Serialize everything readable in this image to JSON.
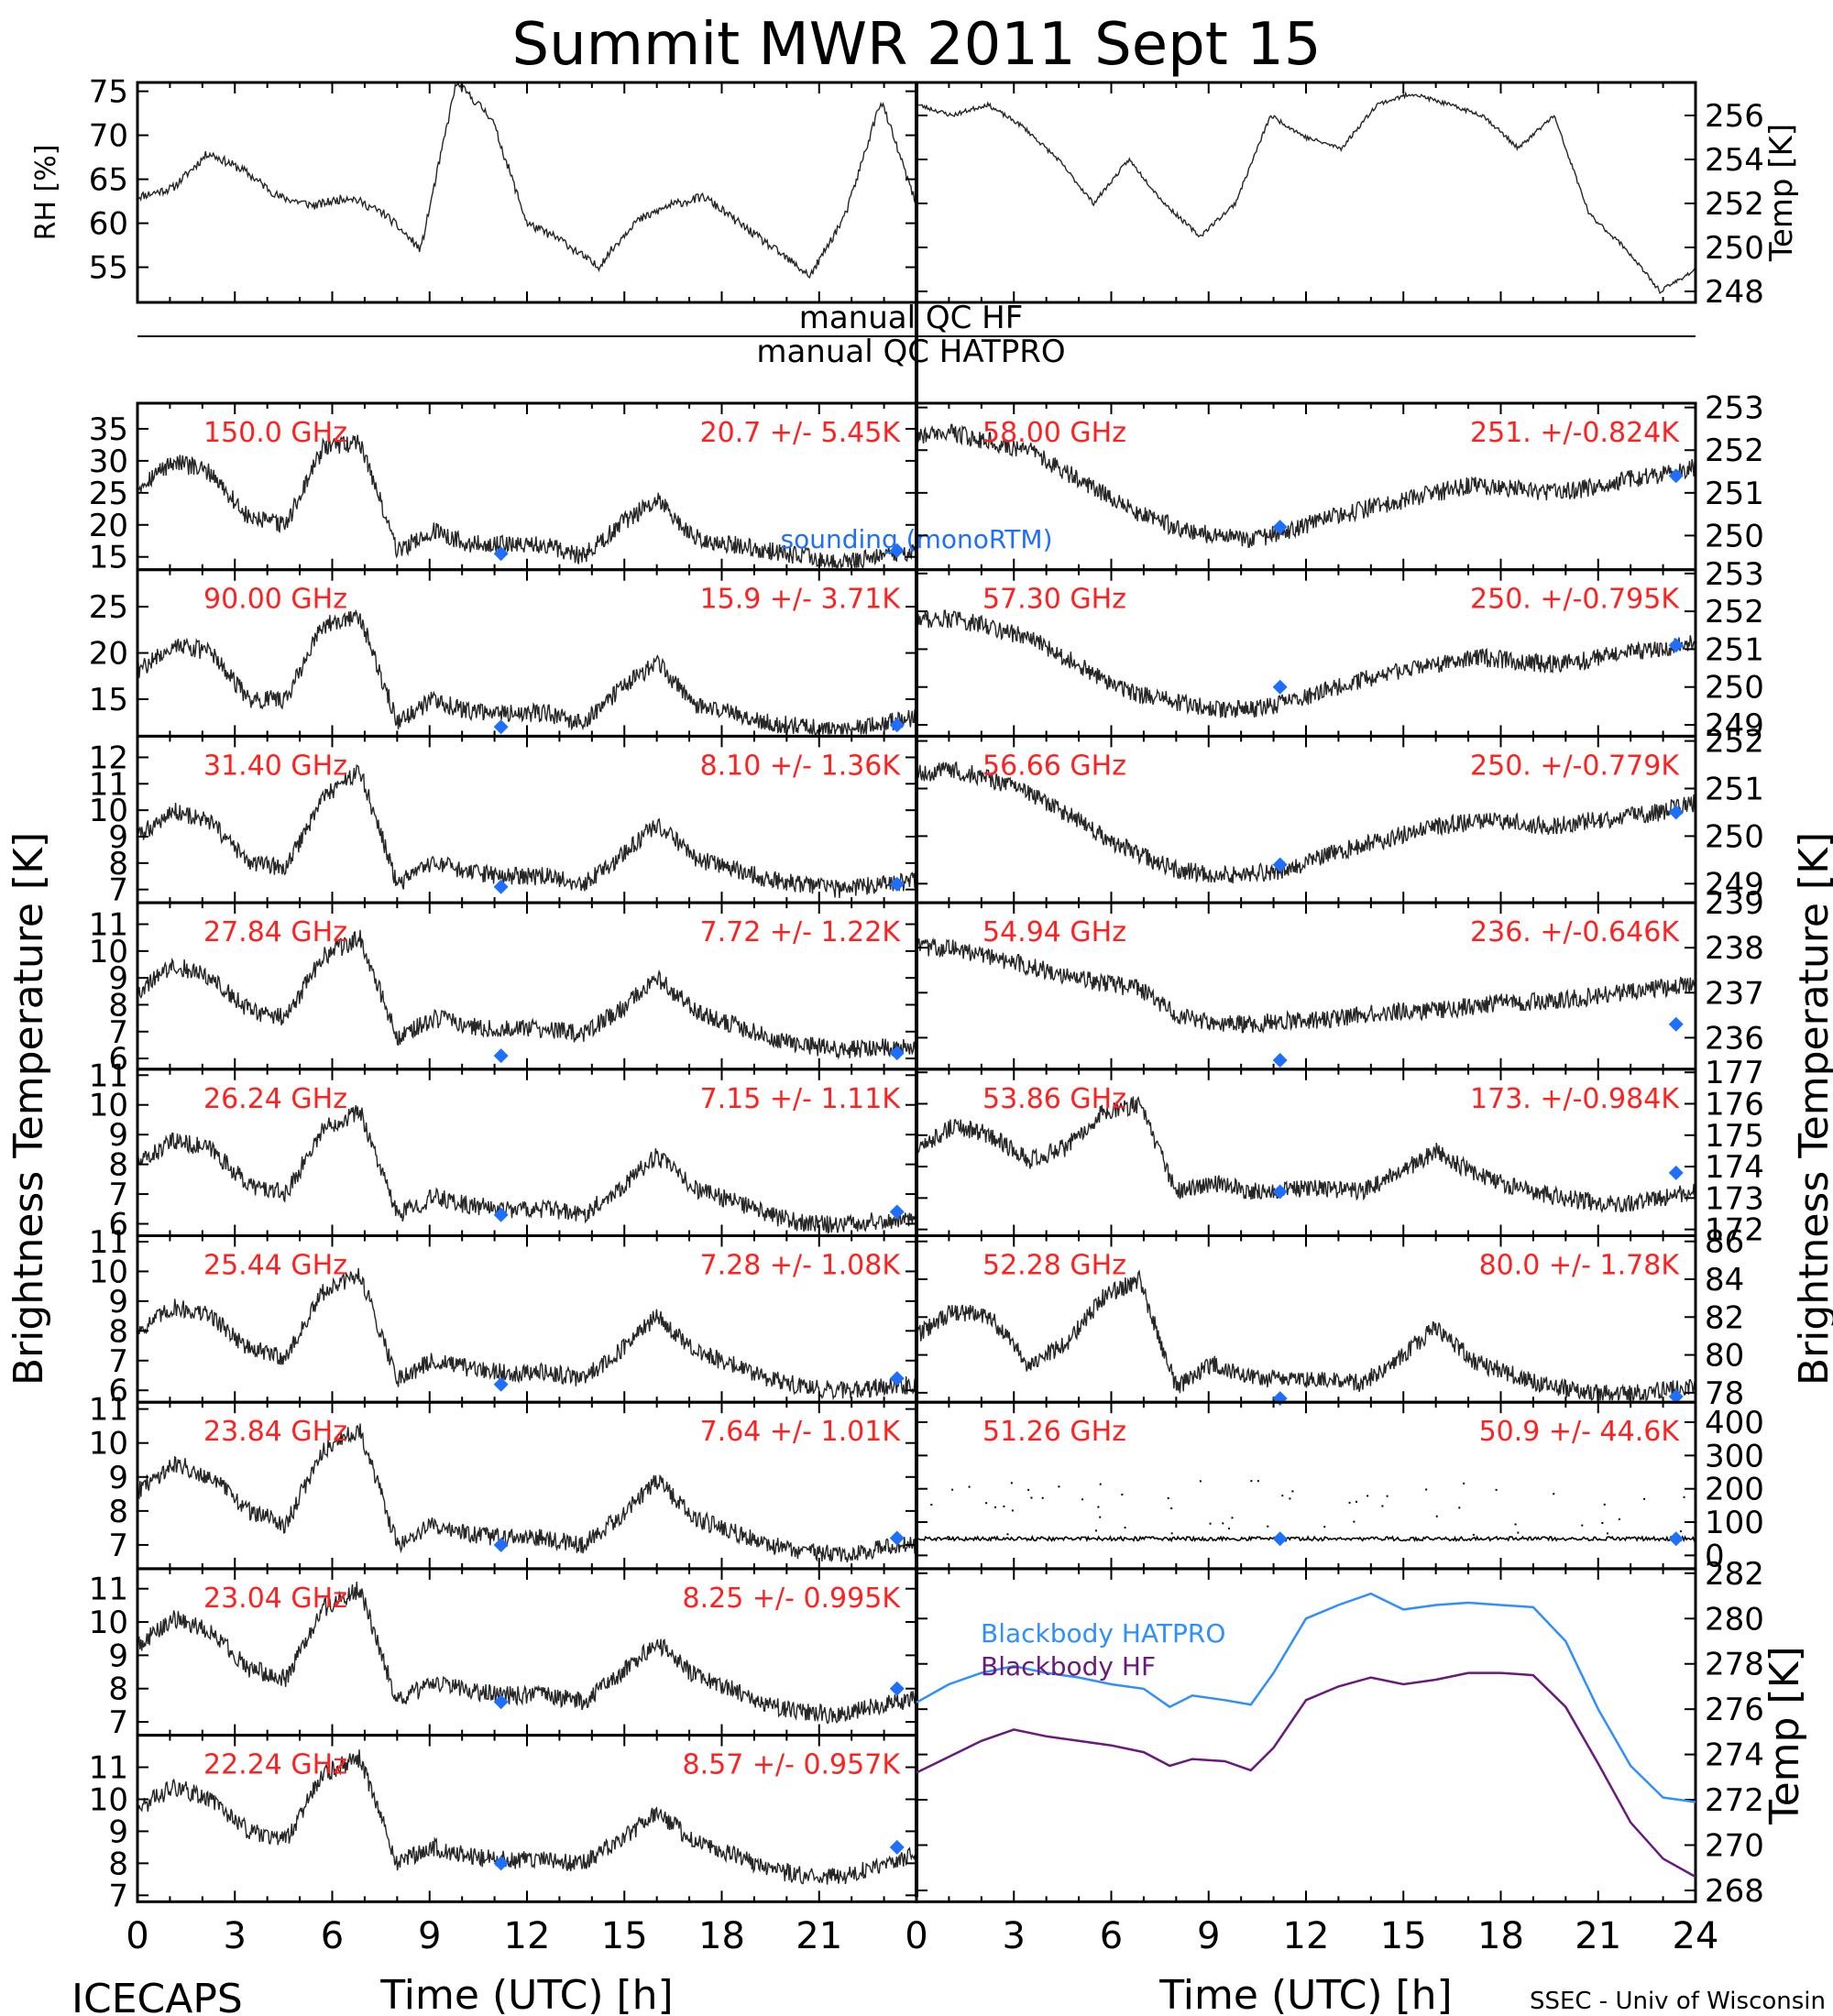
{
  "title": "Summit MWR 2011 Sept 15",
  "footer_left": "ICECAPS",
  "footer_right": "SSEC - Univ of Wisconsin",
  "xlabel": "Time (UTC) [h]",
  "ylabel_left": "Brightness Temperature [K]",
  "ylabel_right": "Brightness Temperature [K]",
  "qc_lines": [
    "manual QC HF",
    "manual QC HATPRO"
  ],
  "sounding_label": "sounding (monoRTM)",
  "colors": {
    "stat_text": "#ff2020",
    "sounding": "#1f6fff",
    "hatpro_line": "#2f8fff",
    "hf_line": "#6a1a7a",
    "trace": "#000000"
  },
  "chart_data": [
    {
      "type": "line",
      "name": "rh",
      "ylabel": "RH [%]",
      "ylim": [
        51,
        76
      ],
      "yticks": [
        55,
        60,
        65,
        70,
        75
      ],
      "x": [
        0,
        24
      ],
      "xticks": [
        0,
        3,
        6,
        9,
        12,
        15,
        18,
        21
      ],
      "trend": [
        63,
        64,
        68,
        66,
        63,
        62,
        63,
        61,
        57,
        76,
        72,
        60,
        58,
        55,
        60,
        62,
        63,
        60,
        57,
        54,
        61,
        74,
        62
      ]
    },
    {
      "type": "line",
      "name": "temp",
      "ylabel": "Temp [K]",
      "ylim": [
        247.5,
        257.5
      ],
      "yticks": [
        248,
        250,
        252,
        254,
        256
      ],
      "x": [
        0,
        24
      ],
      "xticks": [
        0,
        3,
        6,
        9,
        12,
        15,
        18,
        21,
        24
      ],
      "trend": [
        256.5,
        256,
        256.5,
        255.5,
        254,
        252,
        254,
        252,
        250.5,
        252,
        256,
        255,
        254.5,
        256.5,
        257,
        256.5,
        256,
        254.5,
        256,
        251.5,
        250,
        248,
        249
      ]
    },
    {
      "type": "line",
      "name": "150.0 GHz",
      "label": "150.0 GHz",
      "stat": "20.7 +/- 5.45K",
      "ylim": [
        13,
        39
      ],
      "yticks": [
        15,
        20,
        25,
        30,
        35
      ],
      "trend": [
        26,
        30,
        28,
        21,
        20,
        32,
        33,
        16,
        19,
        17,
        17,
        17,
        15,
        20,
        24,
        18,
        17,
        16,
        15,
        14,
        15,
        16
      ],
      "sounding": [
        [
          11.2,
          15.5
        ],
        [
          23.4,
          16
        ]
      ]
    },
    {
      "type": "line",
      "name": "90.00 GHz",
      "label": "90.00 GHz",
      "stat": "15.9 +/- 3.71K",
      "ylim": [
        11,
        29
      ],
      "yticks": [
        15,
        20,
        25
      ],
      "trend": [
        18,
        21,
        20,
        15,
        15,
        23,
        24,
        12.5,
        15,
        13.5,
        13.5,
        13.5,
        12.5,
        16,
        19,
        14.5,
        13.5,
        12.5,
        12,
        11.5,
        12.5,
        13
      ],
      "sounding": [
        [
          11.2,
          12
        ],
        [
          23.4,
          12.2
        ]
      ]
    },
    {
      "type": "line",
      "name": "31.40 GHz",
      "label": "31.40 GHz",
      "stat": "8.10 +/- 1.36K",
      "ylim": [
        6.5,
        12.8
      ],
      "yticks": [
        7,
        8,
        9,
        10,
        11,
        12
      ],
      "trend": [
        9,
        10,
        9.5,
        8,
        7.8,
        10.5,
        11.5,
        7.2,
        8,
        7.6,
        7.5,
        7.5,
        7.2,
        8.2,
        9.5,
        8.2,
        7.8,
        7.4,
        7.2,
        7,
        7.2,
        7.3
      ],
      "sounding": [
        [
          11.2,
          7.1
        ],
        [
          23.4,
          7.2
        ]
      ]
    },
    {
      "type": "line",
      "name": "27.84 GHz",
      "label": "27.84 GHz",
      "stat": "7.72 +/- 1.22K",
      "ylim": [
        5.6,
        11.8
      ],
      "yticks": [
        6,
        7,
        8,
        9,
        10,
        11
      ],
      "trend": [
        8.5,
        9.5,
        9,
        7.8,
        7.5,
        9.8,
        10.5,
        6.8,
        7.5,
        7.2,
        7.1,
        7.1,
        6.9,
        7.8,
        9,
        7.8,
        7.3,
        6.8,
        6.5,
        6.3,
        6.4,
        6.5
      ],
      "sounding": [
        [
          11.2,
          6.1
        ],
        [
          23.4,
          6.2
        ]
      ]
    },
    {
      "type": "line",
      "name": "26.24 GHz",
      "label": "26.24 GHz",
      "stat": "7.15 +/- 1.11K",
      "ylim": [
        5.6,
        11.2
      ],
      "yticks": [
        6,
        7,
        8,
        9,
        10,
        11
      ],
      "trend": [
        8,
        8.8,
        8.5,
        7.3,
        7,
        9.2,
        9.8,
        6.3,
        6.9,
        6.6,
        6.5,
        6.5,
        6.3,
        7.2,
        8.3,
        7.2,
        6.8,
        6.3,
        6,
        6,
        6.1,
        6.2
      ],
      "sounding": [
        [
          11.2,
          6.3
        ],
        [
          23.4,
          6.4
        ]
      ]
    },
    {
      "type": "line",
      "name": "25.44 GHz",
      "label": "25.44 GHz",
      "stat": "7.28 +/- 1.08K",
      "ylim": [
        5.6,
        11.2
      ],
      "yticks": [
        6,
        7,
        8,
        9,
        10,
        11
      ],
      "trend": [
        8,
        8.8,
        8.5,
        7.4,
        7.1,
        9.3,
        9.9,
        6.4,
        7,
        6.7,
        6.6,
        6.6,
        6.4,
        7.3,
        8.5,
        7.3,
        6.9,
        6.4,
        6.1,
        6,
        6.1,
        6.2
      ],
      "sounding": [
        [
          11.2,
          6.2
        ],
        [
          23.4,
          6.4
        ]
      ]
    },
    {
      "type": "line",
      "name": "23.84 GHz",
      "label": "23.84 GHz",
      "stat": "7.64 +/- 1.01K",
      "ylim": [
        6.3,
        11.2
      ],
      "yticks": [
        7,
        8,
        9,
        10,
        11
      ],
      "trend": [
        8.6,
        9.4,
        9,
        8,
        7.6,
        9.8,
        10.4,
        7,
        7.6,
        7.3,
        7.2,
        7.2,
        7,
        7.8,
        8.9,
        7.8,
        7.4,
        7,
        6.8,
        6.7,
        6.9,
        7
      ],
      "sounding": [
        [
          11.2,
          7
        ],
        [
          23.4,
          7.2
        ]
      ]
    },
    {
      "type": "line",
      "name": "23.04 GHz",
      "label": "23.04 GHz",
      "stat": "8.25 +/- 0.995K",
      "ylim": [
        6.6,
        11.6
      ],
      "yticks": [
        7,
        8,
        9,
        10,
        11
      ],
      "trend": [
        9.3,
        10.1,
        9.7,
        8.6,
        8.3,
        10.4,
        11,
        7.6,
        8.2,
        7.9,
        7.8,
        7.8,
        7.6,
        8.4,
        9.4,
        8.4,
        8,
        7.5,
        7.3,
        7.2,
        7.5,
        7.7
      ],
      "sounding": [
        [
          11.2,
          7.6
        ],
        [
          23.4,
          8
        ]
      ]
    },
    {
      "type": "line",
      "name": "22.24 GHz",
      "label": "22.24 GHz",
      "stat": "8.57 +/- 0.957K",
      "ylim": [
        6.8,
        12
      ],
      "yticks": [
        7,
        8,
        9,
        10,
        11
      ],
      "trend": [
        9.7,
        10.4,
        10,
        9,
        8.7,
        10.8,
        11.3,
        8,
        8.5,
        8.2,
        8.1,
        8.1,
        8,
        8.7,
        9.6,
        8.7,
        8.3,
        7.8,
        7.6,
        7.6,
        7.9,
        8.3
      ],
      "sounding": [
        [
          11.2,
          8
        ],
        [
          23.4,
          8.5
        ]
      ]
    },
    {
      "type": "line",
      "name": "58.00 GHz",
      "label": "58.00 GHz",
      "stat": "251. +/-0.824K",
      "ylim": [
        249.2,
        253.1
      ],
      "yticks": [
        250,
        251,
        252,
        253
      ],
      "trend": [
        252.3,
        252.4,
        252.2,
        252,
        251.5,
        251,
        250.5,
        250.2,
        250,
        249.9,
        250.1,
        250.4,
        250.6,
        250.8,
        251,
        251.2,
        251.1,
        251,
        251.1,
        251.3,
        251.4,
        251.6
      ],
      "sounding": [
        [
          11.2,
          250.2
        ],
        [
          23.4,
          251.4
        ]
      ]
    },
    {
      "type": "line",
      "name": "57.30 GHz",
      "label": "57.30 GHz",
      "stat": "250. +/-0.795K",
      "ylim": [
        248.7,
        253.1
      ],
      "yticks": [
        249,
        250,
        251,
        252,
        253
      ],
      "trend": [
        251.8,
        251.8,
        251.6,
        251.3,
        250.8,
        250.2,
        249.8,
        249.6,
        249.4,
        249.4,
        249.6,
        249.9,
        250.2,
        250.4,
        250.6,
        250.8,
        250.7,
        250.6,
        250.7,
        250.9,
        251,
        251.2
      ],
      "sounding": [
        [
          11.2,
          250
        ],
        [
          23.4,
          251.1
        ]
      ]
    },
    {
      "type": "line",
      "name": "56.66 GHz",
      "label": "56.66 GHz",
      "stat": "250. +/-0.779K",
      "ylim": [
        248.6,
        252.1
      ],
      "yticks": [
        249,
        250,
        251,
        252
      ],
      "trend": [
        251.3,
        251.4,
        251.2,
        250.9,
        250.5,
        250,
        249.6,
        249.3,
        249.2,
        249.2,
        249.3,
        249.6,
        249.8,
        250,
        250.2,
        250.3,
        250.3,
        250.2,
        250.3,
        250.4,
        250.5,
        250.7
      ],
      "sounding": [
        [
          11.2,
          249.4
        ],
        [
          23.4,
          250.5
        ]
      ]
    },
    {
      "type": "line",
      "name": "54.94 GHz",
      "label": "54.94 GHz",
      "stat": "236. +/-0.646K",
      "ylim": [
        235.3,
        239
      ],
      "yticks": [
        236,
        237,
        238,
        239
      ],
      "trend": [
        238,
        238,
        237.8,
        237.6,
        237.4,
        237.2,
        237.1,
        236.5,
        236.3,
        236.3,
        236.4,
        236.4,
        236.5,
        236.6,
        236.6,
        236.7,
        236.8,
        236.8,
        236.9,
        237,
        237.1,
        237.2
      ],
      "sounding": [
        [
          11.2,
          235.5
        ],
        [
          23.4,
          236.3
        ]
      ]
    },
    {
      "type": "line",
      "name": "53.86 GHz",
      "label": "53.86 GHz",
      "stat": "173. +/-0.984K",
      "ylim": [
        171.8,
        177.1
      ],
      "yticks": [
        172,
        173,
        174,
        175,
        176,
        177
      ],
      "trend": [
        174.5,
        175.3,
        175,
        174.2,
        174.6,
        175.7,
        176,
        173.2,
        173.5,
        173.2,
        173.3,
        173.3,
        173.2,
        173.8,
        174.5,
        173.8,
        173.4,
        173.1,
        172.9,
        172.8,
        173,
        173.2
      ],
      "sounding": [
        [
          11.2,
          173.2
        ],
        [
          23.4,
          173.8
        ]
      ]
    },
    {
      "type": "line",
      "name": "52.28 GHz",
      "label": "52.28 GHz",
      "stat": "80.0 +/- 1.78K",
      "ylim": [
        77.5,
        86.3
      ],
      "yticks": [
        78,
        80,
        82,
        84,
        86
      ],
      "trend": [
        81,
        82.3,
        82,
        79.5,
        80.5,
        83,
        84,
        78.3,
        79.5,
        78.8,
        78.7,
        78.7,
        78.5,
        79.8,
        81.5,
        79.7,
        79,
        78.4,
        78,
        77.9,
        78.1,
        78.4
      ],
      "sounding": [
        [
          11.2,
          77.7
        ],
        [
          23.4,
          77.8
        ]
      ]
    },
    {
      "type": "line",
      "name": "51.26 GHz",
      "label": "51.26 GHz",
      "stat": "50.9 +/- 44.6K",
      "ylim": [
        -40,
        460
      ],
      "yticks": [
        0,
        100,
        200,
        300,
        400
      ],
      "trend": [
        50,
        50,
        50,
        50,
        50,
        50,
        50,
        50,
        50,
        50,
        50,
        50,
        50,
        50,
        50,
        50,
        50,
        50,
        50,
        50,
        50,
        50
      ],
      "sounding": [
        [
          11.2,
          50
        ],
        [
          23.4,
          50
        ]
      ]
    },
    {
      "type": "line",
      "name": "blackbody",
      "ylabel": "Temp [K]",
      "ylim": [
        267.5,
        282.2
      ],
      "yticks": [
        268,
        270,
        272,
        274,
        276,
        278,
        280,
        282
      ],
      "series": [
        {
          "name": "Blackbody HATPRO",
          "x": [
            0,
            1,
            2,
            3,
            4,
            5,
            6,
            7,
            7.8,
            8.5,
            9.5,
            10.3,
            11,
            12,
            13,
            14,
            15,
            16,
            17,
            18,
            19,
            20,
            21,
            22,
            23,
            24
          ],
          "values": [
            276.3,
            277.1,
            277.6,
            277.9,
            277.6,
            277.4,
            277.1,
            276.9,
            276.1,
            276.6,
            276.4,
            276.2,
            277.6,
            280,
            280.6,
            281.1,
            280.4,
            280.6,
            280.7,
            280.6,
            280.5,
            279,
            276,
            273.5,
            272.1,
            271.9
          ]
        },
        {
          "name": "Blackbody HF",
          "x": [
            0,
            1,
            2,
            3,
            4,
            5,
            6,
            7,
            7.8,
            8.5,
            9.5,
            10.3,
            11,
            12,
            13,
            14,
            15,
            16,
            17,
            18,
            19,
            20,
            21,
            22,
            23,
            24
          ],
          "values": [
            273.2,
            273.9,
            274.6,
            275.1,
            274.8,
            274.6,
            274.4,
            274.1,
            273.5,
            273.8,
            273.7,
            273.3,
            274.3,
            276.4,
            277,
            277.4,
            277.1,
            277.3,
            277.6,
            277.6,
            277.5,
            276.1,
            273.6,
            271,
            269.4,
            268.6
          ]
        }
      ]
    }
  ]
}
